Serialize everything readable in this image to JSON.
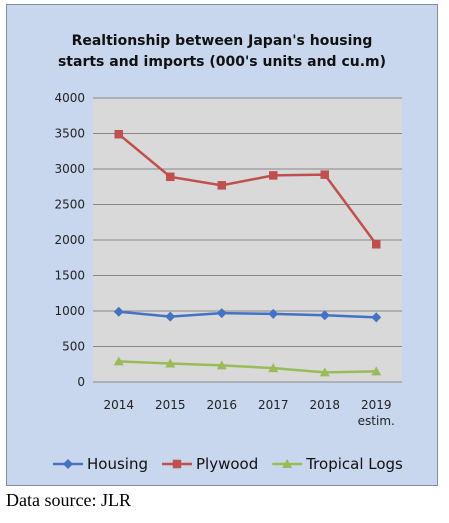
{
  "chart_data": {
    "type": "line",
    "title_lines": [
      "Realtionship between Japan's housing",
      "starts and imports (000's units and cu.m)"
    ],
    "categories": [
      [
        "2014"
      ],
      [
        "2015"
      ],
      [
        "2016"
      ],
      [
        "2017"
      ],
      [
        "2018"
      ],
      [
        "2019",
        "estim."
      ]
    ],
    "ylim": [
      0,
      4000
    ],
    "yticks": [
      0,
      500,
      1000,
      1500,
      2000,
      2500,
      3000,
      3500,
      4000
    ],
    "grid": true,
    "legend_position": "bottom",
    "series": [
      {
        "name": "Housing",
        "values": [
          990,
          920,
          970,
          960,
          940,
          910
        ],
        "color": "#4472c4",
        "marker": "diamond"
      },
      {
        "name": "Plywood",
        "values": [
          3490,
          2890,
          2770,
          2910,
          2920,
          1940
        ],
        "color": "#c0504d",
        "marker": "square"
      },
      {
        "name": "Tropical Logs",
        "values": [
          290,
          260,
          235,
          195,
          135,
          150
        ],
        "color": "#9bbb59",
        "marker": "triangle"
      }
    ]
  },
  "source": "Data source: JLR"
}
